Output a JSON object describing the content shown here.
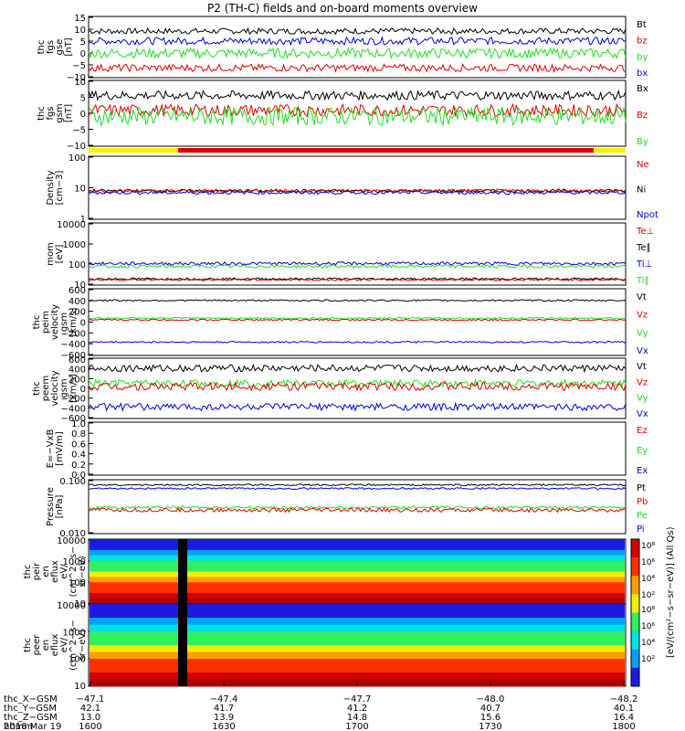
{
  "title": "P2 (TH-C) fields and on-board moments overview",
  "colors": {
    "black": "#000000",
    "red": "#e00000",
    "green": "#22dd22",
    "blue": "#0000dd",
    "yellow": "#ffee00"
  },
  "chart_data": [
    {
      "type": "line",
      "id": "fgs-gse",
      "ylabel": [
        "thc",
        "fgs",
        "gse",
        "[nT]"
      ],
      "ylim": [
        -10,
        15
      ],
      "yticks": [
        "15",
        "10",
        "5",
        "0",
        "−5",
        "−10"
      ],
      "legend": [
        {
          "name": "Bt",
          "color": "black"
        },
        {
          "name": "bz",
          "color": "red"
        },
        {
          "name": "by",
          "color": "green"
        },
        {
          "name": "bx",
          "color": "blue"
        }
      ],
      "series": [
        {
          "name": "Bt",
          "color": "black",
          "level": 9,
          "noise": 1.2
        },
        {
          "name": "bx",
          "color": "blue",
          "level": 5,
          "noise": 1.5
        },
        {
          "name": "by",
          "color": "green",
          "level": 0,
          "noise": 2
        },
        {
          "name": "bz",
          "color": "red",
          "level": -6,
          "noise": 1.5
        }
      ]
    },
    {
      "type": "line",
      "id": "fgs-gsm",
      "ylabel": [
        "thc",
        "fgs",
        "gsm",
        "[nT]"
      ],
      "ylim": [
        -12,
        10
      ],
      "yticks": [
        "10",
        "5",
        "0",
        "−5",
        "−10"
      ],
      "legend": [
        {
          "name": "Bx",
          "color": "black"
        },
        {
          "name": "Bz",
          "color": "red"
        },
        {
          "name": "By",
          "color": "green"
        }
      ],
      "series": [
        {
          "name": "Bx",
          "color": "black",
          "level": 5,
          "noise": 1.5
        },
        {
          "name": "Bz",
          "color": "red",
          "level": 0,
          "noise": 2
        },
        {
          "name": "By",
          "color": "green",
          "level": -2,
          "noise": 3
        }
      ]
    },
    {
      "type": "line",
      "id": "density",
      "log": true,
      "ylabel": [
        "Density",
        "[cm−3]"
      ],
      "ylim": [
        1,
        100
      ],
      "yticks": [
        "100",
        "10",
        "1"
      ],
      "legend": [
        {
          "name": "Ne",
          "color": "red"
        },
        {
          "name": "Ni",
          "color": "black"
        },
        {
          "name": "Npot",
          "color": "blue"
        }
      ],
      "series": [
        {
          "name": "Ni",
          "color": "black",
          "level": 8,
          "noise": 0.1
        },
        {
          "name": "Ne",
          "color": "red",
          "level": 8,
          "noise": 0.1
        },
        {
          "name": "Npot",
          "color": "blue",
          "level": 7,
          "noise": 0.1
        }
      ]
    },
    {
      "type": "line",
      "id": "temperature",
      "log": true,
      "ylabel": [
        "mom",
        "[eV]"
      ],
      "ylim": [
        10,
        10000
      ],
      "yticks": [
        "10000",
        "1000",
        "100",
        "10"
      ],
      "legend": [
        {
          "name": "Te⊥",
          "color": "red"
        },
        {
          "name": "Te∥",
          "color": "black"
        },
        {
          "name": "Ti⊥",
          "color": "blue"
        },
        {
          "name": "Ti∥",
          "color": "green"
        }
      ],
      "series": [
        {
          "name": "Ti⊥",
          "color": "blue",
          "level": 110,
          "noise": 0.15
        },
        {
          "name": "Ti∥",
          "color": "green",
          "level": 80,
          "noise": 0.15
        },
        {
          "name": "Te∥",
          "color": "black",
          "level": 20,
          "noise": 0.1
        },
        {
          "name": "Te⊥",
          "color": "red",
          "level": 18,
          "noise": 0.1
        }
      ]
    },
    {
      "type": "line",
      "id": "peim-velocity",
      "ylabel": [
        "thc",
        "peim",
        "velocity",
        "gsm",
        "[km/s]"
      ],
      "ylim": [
        -600,
        600
      ],
      "yticks": [
        "600",
        "400",
        "200",
        "0",
        "−200",
        "−400",
        "−600"
      ],
      "legend": [
        {
          "name": "Vt",
          "color": "black"
        },
        {
          "name": "Vz",
          "color": "red"
        },
        {
          "name": "Vy",
          "color": "green"
        },
        {
          "name": "Vx",
          "color": "blue"
        }
      ],
      "series": [
        {
          "name": "Vt",
          "color": "black",
          "level": 390,
          "noise": 15
        },
        {
          "name": "Vy",
          "color": "green",
          "level": 70,
          "noise": 15
        },
        {
          "name": "Vz",
          "color": "red",
          "level": 40,
          "noise": 15
        },
        {
          "name": "Vx",
          "color": "blue",
          "level": -360,
          "noise": 15
        }
      ]
    },
    {
      "type": "line",
      "id": "peem-velocity",
      "ylabel": [
        "thc",
        "peem",
        "velocity",
        "gsm",
        "[km/s]"
      ],
      "ylim": [
        -600,
        600
      ],
      "yticks": [
        "600",
        "400",
        "200",
        "0",
        "−200",
        "−400",
        "−600"
      ],
      "legend": [
        {
          "name": "Vt",
          "color": "black"
        },
        {
          "name": "Vz",
          "color": "red"
        },
        {
          "name": "Vy",
          "color": "green"
        },
        {
          "name": "Vx",
          "color": "blue"
        }
      ],
      "series": [
        {
          "name": "Vt",
          "color": "black",
          "level": 400,
          "noise": 70
        },
        {
          "name": "Vy",
          "color": "green",
          "level": 100,
          "noise": 70
        },
        {
          "name": "Vz",
          "color": "red",
          "level": 40,
          "noise": 80
        },
        {
          "name": "Vx",
          "color": "blue",
          "level": -370,
          "noise": 70
        }
      ]
    },
    {
      "type": "line",
      "id": "efield",
      "ylabel": [
        "E=−VxB",
        "[mV/m]"
      ],
      "ylim": [
        0,
        1
      ],
      "yticks": [
        "1.0",
        "0.8",
        "0.6",
        "0.4",
        "0.2",
        "0.0"
      ],
      "legend": [
        {
          "name": "Ez",
          "color": "red"
        },
        {
          "name": "Ey",
          "color": "green"
        },
        {
          "name": "Ex",
          "color": "blue"
        }
      ],
      "series": []
    },
    {
      "type": "line",
      "id": "pressure",
      "log": true,
      "ylabel": [
        "Pressure",
        "[nPa]"
      ],
      "ylim": [
        0.005,
        0.2
      ],
      "yticks": [
        "0.100",
        "0.010"
      ],
      "legend": [
        {
          "name": "Pt",
          "color": "black"
        },
        {
          "name": "Pb",
          "color": "red"
        },
        {
          "name": "Pe",
          "color": "green"
        },
        {
          "name": "Pi",
          "color": "blue"
        }
      ],
      "series": [
        {
          "name": "Pt",
          "color": "black",
          "level": 0.14,
          "noise": 0.05
        },
        {
          "name": "Pi",
          "color": "blue",
          "level": 0.11,
          "noise": 0.05
        },
        {
          "name": "Pe",
          "color": "green",
          "level": 0.03,
          "noise": 0.08
        },
        {
          "name": "Pb",
          "color": "red",
          "level": 0.025,
          "noise": 0.12
        }
      ]
    },
    {
      "type": "heatmap",
      "id": "peir-eflux",
      "ylabel": [
        "thc",
        "peir",
        "en",
        "eflux",
        "eV/",
        "(cm^2−s−",
        "sr−eV)"
      ],
      "ylim": [
        5,
        30000
      ],
      "yticks": [
        "10000",
        "1000",
        "100",
        "10"
      ]
    },
    {
      "type": "heatmap",
      "id": "peer-eflux",
      "ylabel": [
        "thc",
        "peer",
        "en",
        "eflux",
        "eV/",
        "(cm^2−s−",
        "sr−eV)"
      ],
      "ylim": [
        5,
        30000
      ],
      "yticks": [
        "10000",
        "1000",
        "100",
        "10"
      ]
    }
  ],
  "colorbar": {
    "label": "[eV/(cm^2−s−sr−eV)] (All Qs)",
    "upper_ticks": [
      "10^8",
      "10^6",
      "10^4",
      "10^2"
    ],
    "lower_ticks": [
      "10^8",
      "10^6",
      "10^4",
      "10^2"
    ]
  },
  "xaxis": {
    "tick_values": [
      "1600",
      "1630",
      "1700",
      "1730",
      "1800"
    ],
    "rows": [
      {
        "label": "thc_X−GSM",
        "values": [
          "−47.1",
          "−47.4",
          "−47.7",
          "−48.0",
          "−48.2"
        ]
      },
      {
        "label": "thc_Y−GSM",
        "values": [
          "42.1",
          "41.7",
          "41.2",
          "40.7",
          "40.1"
        ]
      },
      {
        "label": "thc_Z−GSM",
        "values": [
          "13.0",
          "13.9",
          "14.8",
          "15.6",
          "16.4"
        ]
      },
      {
        "label": "hhmm",
        "values": [
          "1600",
          "1630",
          "1700",
          "1730",
          "1800"
        ]
      }
    ],
    "date": "2016 Mar 19"
  }
}
